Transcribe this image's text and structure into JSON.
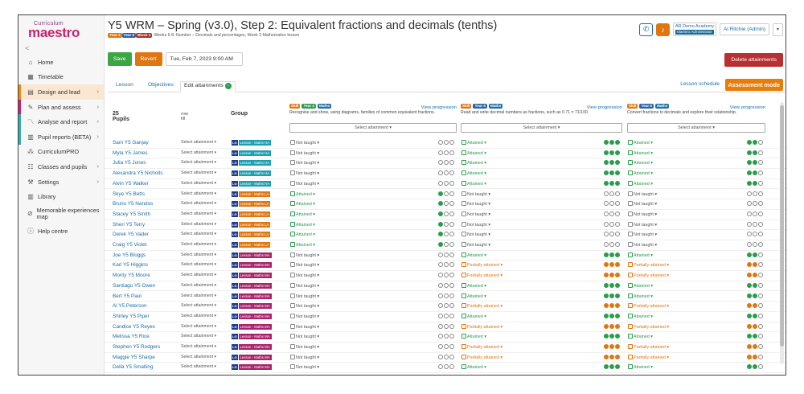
{
  "app": {
    "logo_small": "Curriculum",
    "logo_big": "maestro",
    "collapse": "<"
  },
  "sidebar": [
    {
      "label": "Home",
      "icon": "home-icon",
      "glyph": "⌂",
      "arrow": false,
      "bar": ""
    },
    {
      "label": "Timetable",
      "icon": "calendar-icon",
      "glyph": "▦",
      "arrow": false,
      "bar": ""
    },
    {
      "label": "Design and lead",
      "icon": "design-icon",
      "glyph": "▤",
      "arrow": true,
      "bar": "#e8891a",
      "bg": "#fbe7d1"
    },
    {
      "label": "Plan and assess",
      "icon": "pencil-icon",
      "glyph": "✎",
      "arrow": true,
      "bar": "#c7236e"
    },
    {
      "label": "Analyse and report",
      "icon": "chart-icon",
      "glyph": "〽",
      "arrow": true,
      "bar": "#37a9b8"
    },
    {
      "label": "Pupil reports (BETA)",
      "icon": "reports-icon",
      "glyph": "▥",
      "arrow": true,
      "bar": "#37a9b8"
    },
    {
      "label": "CurriculumPRO",
      "icon": "pro-icon",
      "glyph": "⁂",
      "arrow": false,
      "bar": ""
    },
    {
      "label": "Classes and pupils",
      "icon": "classes-icon",
      "glyph": "☷",
      "arrow": true,
      "bar": ""
    },
    {
      "label": "Settings",
      "icon": "settings-icon",
      "glyph": "⚒",
      "arrow": true,
      "bar": ""
    },
    {
      "label": "Library",
      "icon": "library-icon",
      "glyph": "▥",
      "arrow": false,
      "bar": ""
    },
    {
      "label": "Memorable experiences map",
      "icon": "compass-icon",
      "glyph": "⊘",
      "arrow": false,
      "bar": ""
    },
    {
      "label": "Help centre",
      "icon": "help-icon",
      "glyph": "ⓘ",
      "arrow": false,
      "bar": ""
    }
  ],
  "header": {
    "title": "Y5 WRM – Spring (v3.0), Step 2: Equivalent fractions and decimals (tenths)",
    "tags": [
      {
        "t": "Year 4",
        "c": "#e0760f"
      },
      {
        "t": "Year 5",
        "c": "#2a62a8"
      },
      {
        "t": "Block 3",
        "c": "#a83229"
      }
    ],
    "subtitle": "Weeks 6-8: Number – Decimals and percentages, Week 3 Mathematics lesson",
    "academy": "AR Demo Academy",
    "academy_role": "Maestro Administrator",
    "user": "Al Ritchie (Admin)",
    "user_drop": "▾"
  },
  "toolbar": {
    "save": "Save",
    "revert": "Revert",
    "date": "Tue, Feb 7, 2023 9:00 AM",
    "delete": "Delete attainments"
  },
  "tabs": {
    "lesson": "Lesson",
    "objectives": "Objectives",
    "edit": "Edit attainments",
    "edit_badge": "›",
    "schedule": "Lesson schedule",
    "assessment": "Assessment mode"
  },
  "grid": {
    "pupils": "25 Pupils",
    "rowfill": "row fill",
    "group": "Group",
    "select_att": "Select attainment ▾",
    "objectives": [
      {
        "tags": [
          {
            "t": "Skill",
            "c": "#e0760f"
          },
          {
            "t": "Year 4",
            "c": "#2a9d4c"
          },
          {
            "t": "Maths",
            "c": "#1a6fa6"
          }
        ],
        "vp": "View progression",
        "desc": "Recognise and show, using diagrams, families of common equivalent fractions."
      },
      {
        "tags": [
          {
            "t": "Skill",
            "c": "#e0760f"
          },
          {
            "t": "Year 5",
            "c": "#2a62a8"
          },
          {
            "t": "Maths",
            "c": "#1a6fa6"
          }
        ],
        "vp": "View progression",
        "desc": "Read and write decimal numbers as fractions, such as 0.71 = 71/100."
      },
      {
        "tags": [
          {
            "t": "Skill",
            "c": "#e0760f"
          },
          {
            "t": "Year 5",
            "c": "#2a62a8"
          },
          {
            "t": "Maths",
            "c": "#1a6fa6"
          }
        ],
        "vp": "View progression",
        "desc": "Convert fractions to decimals and explore their relationship."
      }
    ],
    "rows": [
      {
        "name": "Sam Y5 Ganjay",
        "g": "Lesson - Maths HA",
        "s": [
          "n",
          "a",
          "a"
        ],
        "d": [
          "000",
          "ggg",
          "gg0"
        ]
      },
      {
        "name": "Myla Y5 James",
        "g": "Lesson - Maths HA",
        "s": [
          "n",
          "a",
          "a"
        ],
        "d": [
          "000",
          "ggg",
          "gg0"
        ]
      },
      {
        "name": "Julia Y5 Jones",
        "g": "Lesson - Maths HA",
        "s": [
          "n",
          "a",
          "a"
        ],
        "d": [
          "000",
          "ggg",
          "gg0"
        ]
      },
      {
        "name": "Alexandra Y5 Nicholls",
        "g": "Lesson - Maths HA",
        "s": [
          "n",
          "a",
          "a"
        ],
        "d": [
          "000",
          "ggg",
          "gg0"
        ]
      },
      {
        "name": "Alvin Y5 Walker",
        "g": "Lesson - Maths HA",
        "s": [
          "n",
          "a",
          "a"
        ],
        "d": [
          "000",
          "ggg",
          "gg0"
        ]
      },
      {
        "name": "Skye Y5 Betts",
        "g": "Lesson - Maths LA",
        "s": [
          "a",
          "n",
          "n"
        ],
        "d": [
          "g00",
          "000",
          "000"
        ]
      },
      {
        "name": "Bruno Y5 Nandos",
        "g": "Lesson - Maths LA",
        "s": [
          "a",
          "n",
          "n"
        ],
        "d": [
          "g00",
          "000",
          "000"
        ]
      },
      {
        "name": "Stacey Y5 Smith",
        "g": "Lesson - Maths LA",
        "s": [
          "a",
          "n",
          "n"
        ],
        "d": [
          "g00",
          "000",
          "000"
        ]
      },
      {
        "name": "Sheri Y5 Terry",
        "g": "Lesson - Maths LA",
        "s": [
          "a",
          "n",
          "n"
        ],
        "d": [
          "g00",
          "000",
          "000"
        ]
      },
      {
        "name": "Derek Y5 Vader",
        "g": "Lesson - Maths LA",
        "s": [
          "a",
          "n",
          "n"
        ],
        "d": [
          "g00",
          "000",
          "000"
        ]
      },
      {
        "name": "Craig Y5 Violet",
        "g": "Lesson - Maths LA",
        "s": [
          "a",
          "n",
          "n"
        ],
        "d": [
          "g00",
          "000",
          "000"
        ]
      },
      {
        "name": "Joe Y5 Bloggs",
        "g": "Lesson - Maths MA",
        "s": [
          "n",
          "a",
          "a"
        ],
        "d": [
          "000",
          "ggg",
          "gg0"
        ]
      },
      {
        "name": "Karl Y5 Higgins",
        "g": "Lesson - Maths MA",
        "s": [
          "n",
          "p",
          "p"
        ],
        "d": [
          "000",
          "ooo",
          "oo0"
        ]
      },
      {
        "name": "Monty Y5 Moore",
        "g": "Lesson - Maths MA",
        "s": [
          "n",
          "p",
          "p"
        ],
        "d": [
          "000",
          "ooo",
          "oo0"
        ]
      },
      {
        "name": "Santiago Y5 Owen",
        "g": "Lesson - Maths MA",
        "s": [
          "n",
          "a",
          "a"
        ],
        "d": [
          "000",
          "ggg",
          "gg0"
        ]
      },
      {
        "name": "Bert Y5 Paul",
        "g": "Lesson - Maths MA",
        "s": [
          "n",
          "a",
          "a"
        ],
        "d": [
          "000",
          "ggg",
          "gg0"
        ]
      },
      {
        "name": "Al Y5 Peterson",
        "g": "Lesson - Maths MA",
        "s": [
          "n",
          "p",
          "p"
        ],
        "d": [
          "000",
          "ooo",
          "oo0"
        ]
      },
      {
        "name": "Shirley Y5 Piper",
        "g": "Lesson - Maths MA",
        "s": [
          "n",
          "a",
          "a"
        ],
        "d": [
          "000",
          "ggg",
          "gg0"
        ]
      },
      {
        "name": "Candice Y5 Reyes",
        "g": "Lesson - Maths MA",
        "s": [
          "n",
          "p",
          "p"
        ],
        "d": [
          "000",
          "ooo",
          "oo0"
        ]
      },
      {
        "name": "Melissa Y5 Rice",
        "g": "Lesson - Maths MA",
        "s": [
          "n",
          "a",
          "a"
        ],
        "d": [
          "000",
          "ggg",
          "gg0"
        ]
      },
      {
        "name": "Stephen Y5 Rodgers",
        "g": "Lesson - Maths MA",
        "s": [
          "n",
          "p",
          "p"
        ],
        "d": [
          "000",
          "ooo",
          "oo0"
        ]
      },
      {
        "name": "Maggie Y5 Sharpe",
        "g": "Lesson - Maths MA",
        "s": [
          "n",
          "p",
          "p"
        ],
        "d": [
          "000",
          "ooo",
          "oo0"
        ]
      },
      {
        "name": "Della Y5 Smalling",
        "g": "Lesson - Maths MA",
        "s": [
          "n",
          "a",
          "a"
        ],
        "d": [
          "000",
          "ggg",
          "gg0"
        ]
      }
    ],
    "status_labels": {
      "n": "Not taught ▾",
      "a": "Attained ▾",
      "p": "Partially attained ▾"
    },
    "group_colors": {
      "Lesson - Maths HA": "#1c9fb0",
      "Lesson - Maths LA": "#e0760f",
      "Lesson - Maths MA": "#a8236a"
    },
    "group_tag": "LG",
    "dot_colors": {
      "g": "#2a9d4c",
      "o": "#e0760f",
      "0": "#ffffff"
    }
  }
}
